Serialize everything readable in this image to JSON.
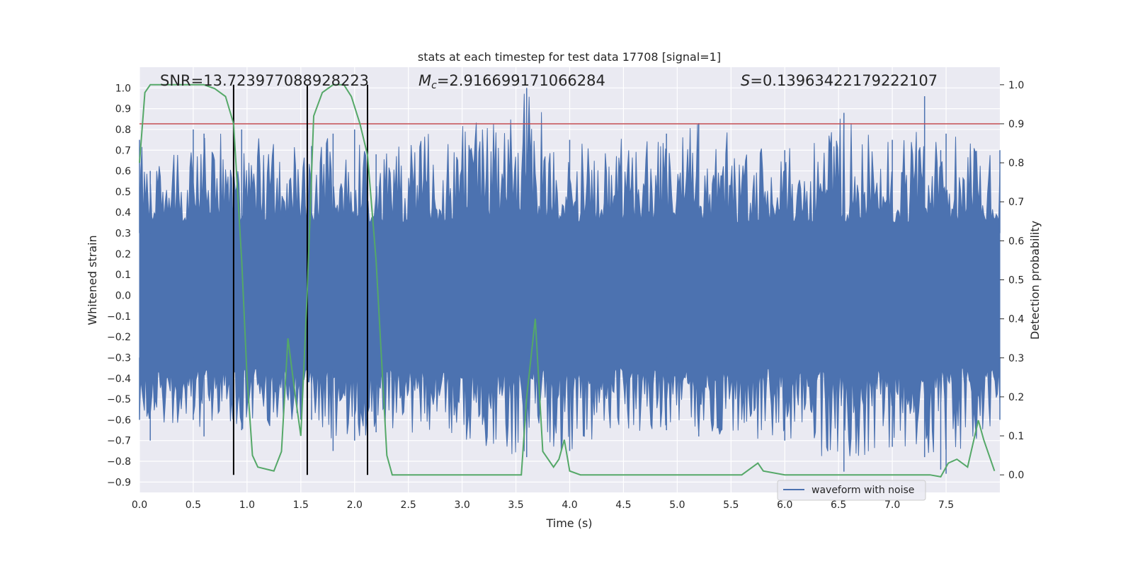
{
  "chart_data": {
    "type": "line",
    "title": "stats at each timestep for test data 17708 [signal=1]",
    "xlabel": "Time (s)",
    "ylabel": "Whitened strain",
    "y2label": "Detection probability",
    "xlim": [
      0,
      8
    ],
    "ylim": [
      -0.95,
      1.1
    ],
    "y2lim": [
      -0.045,
      1.045
    ],
    "xticks": [
      "0.0",
      "0.5",
      "1.0",
      "1.5",
      "2.0",
      "2.5",
      "3.0",
      "3.5",
      "4.0",
      "4.5",
      "5.0",
      "5.5",
      "6.0",
      "6.5",
      "7.0",
      "7.5"
    ],
    "yticks": [
      "1.0",
      "0.9",
      "0.8",
      "0.7",
      "0.6",
      "0.5",
      "0.4",
      "0.3",
      "0.2",
      "0.1",
      "0.0",
      "−0.1",
      "−0.2",
      "−0.3",
      "−0.4",
      "−0.5",
      "−0.6",
      "−0.7",
      "−0.8",
      "−0.9"
    ],
    "y2ticks": [
      "1.0",
      "0.9",
      "0.8",
      "0.7",
      "0.6",
      "0.5",
      "0.4",
      "0.3",
      "0.2",
      "0.1",
      "0.0"
    ],
    "annotations": {
      "snr": "SNR=13.723977088928223",
      "mc_symbol": "M",
      "mc_sub": "c",
      "mc_value": "=2.916699171066284",
      "s_symbol": "S",
      "s_value": "=0.13963422179222107"
    },
    "threshold": 0.9,
    "vlines": [
      0.875,
      1.56,
      2.12
    ],
    "legend": {
      "label": "waveform with noise",
      "placement": "lower-right"
    },
    "grid": true,
    "series": [
      {
        "name": "waveform with noise",
        "color": "#4c72b0",
        "kind": "noise-envelope",
        "x": [
          0.0,
          0.1,
          0.5,
          0.6,
          0.95,
          1.6,
          1.8,
          2.0,
          2.2,
          3.6,
          4.0,
          4.9,
          5.2,
          6.0,
          6.55,
          7.0,
          7.3,
          7.45,
          7.5,
          8.0
        ],
        "upper": [
          0.75,
          0.6,
          0.8,
          0.78,
          0.8,
          0.72,
          0.78,
          0.8,
          0.68,
          1.0,
          0.75,
          0.78,
          0.83,
          0.7,
          0.88,
          0.75,
          0.96,
          0.7,
          0.78,
          0.7
        ],
        "lower": [
          -0.6,
          -0.7,
          -0.6,
          -0.68,
          -0.65,
          -0.6,
          -0.75,
          -0.7,
          -0.66,
          -0.78,
          -0.75,
          -0.65,
          -0.68,
          -0.7,
          -0.85,
          -0.73,
          -0.78,
          -0.84,
          -0.86,
          -0.6
        ]
      },
      {
        "name": "detection probability",
        "color": "#55a868",
        "axis": "right",
        "x": [
          0.0,
          0.05,
          0.1,
          0.2,
          0.3,
          0.4,
          0.5,
          0.6,
          0.7,
          0.8,
          0.875,
          0.95,
          1.0,
          1.05,
          1.1,
          1.25,
          1.32,
          1.38,
          1.45,
          1.5,
          1.56,
          1.62,
          1.7,
          1.8,
          1.9,
          1.97,
          2.05,
          2.12,
          2.2,
          2.3,
          2.35,
          2.4,
          2.6,
          2.8,
          3.0,
          3.2,
          3.4,
          3.55,
          3.6,
          3.68,
          3.75,
          3.85,
          3.9,
          3.95,
          4.0,
          4.1,
          4.3,
          4.6,
          4.9,
          5.0,
          5.3,
          5.6,
          5.75,
          5.8,
          6.0,
          6.2,
          6.5,
          6.7,
          6.9,
          7.2,
          7.35,
          7.45,
          7.52,
          7.6,
          7.7,
          7.8,
          7.85,
          7.95
        ],
        "y": [
          0.8,
          0.98,
          1.0,
          1.0,
          1.0,
          1.0,
          1.0,
          1.0,
          0.99,
          0.97,
          0.9,
          0.55,
          0.25,
          0.05,
          0.02,
          0.01,
          0.06,
          0.35,
          0.2,
          0.1,
          0.47,
          0.92,
          0.98,
          1.0,
          1.0,
          0.97,
          0.9,
          0.82,
          0.55,
          0.05,
          0.0,
          0.0,
          0.0,
          0.0,
          0.0,
          0.0,
          0.0,
          0.0,
          0.2,
          0.4,
          0.06,
          0.02,
          0.04,
          0.09,
          0.01,
          0.0,
          0.0,
          0.0,
          0.0,
          0.0,
          0.0,
          0.0,
          0.03,
          0.01,
          0.0,
          0.0,
          0.0,
          0.0,
          0.0,
          0.0,
          0.0,
          -0.005,
          0.03,
          0.04,
          0.02,
          0.14,
          0.09,
          0.01
        ]
      }
    ]
  }
}
